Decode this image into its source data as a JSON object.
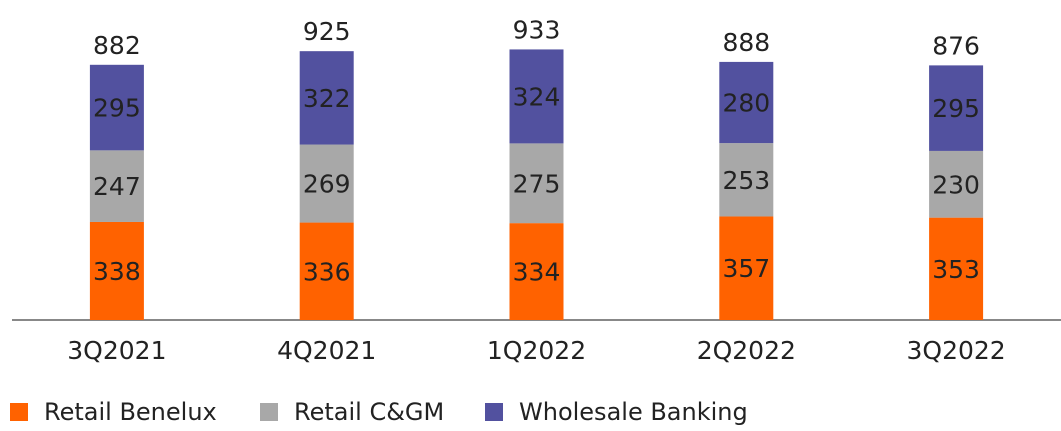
{
  "chart_data": {
    "type": "stacked_bar",
    "categories": [
      "3Q2021",
      "4Q2021",
      "1Q2022",
      "2Q2022",
      "3Q2022"
    ],
    "series": [
      {
        "name": "Retail Benelux",
        "color": "#ff6200",
        "values": [
          338,
          336,
          334,
          357,
          353
        ]
      },
      {
        "name": "Retail C&GM",
        "color": "#a8a8a8",
        "values": [
          247,
          269,
          275,
          253,
          230
        ]
      },
      {
        "name": "Wholesale Banking",
        "color": "#52519f",
        "values": [
          295,
          322,
          324,
          280,
          295
        ]
      }
    ],
    "totals": [
      882,
      925,
      933,
      888,
      876
    ],
    "legend": "bottom"
  }
}
